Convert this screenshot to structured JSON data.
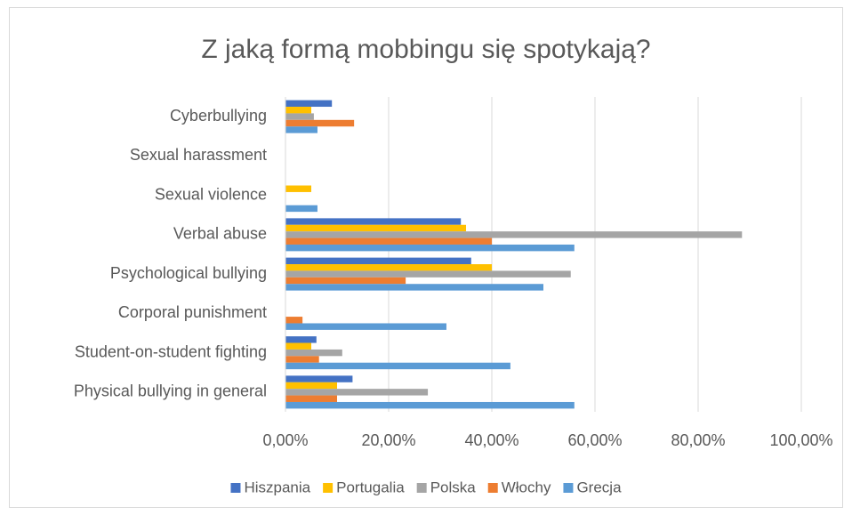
{
  "chart_data": {
    "type": "hbar",
    "title": "Z jaką formą mobbingu się spotykają?",
    "categories": [
      "Cyberbullying",
      "Sexual harassment",
      "Sexual violence",
      "Verbal abuse",
      "Psychological bullying",
      "Corporal punishment",
      "Student-on-student fighting",
      "Physical bullying in general"
    ],
    "series": [
      {
        "name": "Hiszpania",
        "color": "#4472c4",
        "values": [
          9,
          0,
          0,
          34,
          36,
          0,
          6,
          13
        ]
      },
      {
        "name": "Portugalia",
        "color": "#ffc000",
        "values": [
          5,
          0,
          5,
          35,
          40,
          0,
          5,
          10
        ]
      },
      {
        "name": "Polska",
        "color": "#a5a5a5",
        "values": [
          5.5,
          0,
          0,
          88.5,
          55.3,
          0,
          11,
          27.6
        ]
      },
      {
        "name": "Włochy",
        "color": "#ed7d31",
        "values": [
          13.3,
          0,
          0,
          40,
          23.3,
          3.3,
          6.5,
          10
        ]
      },
      {
        "name": "Grecja",
        "color": "#5b9bd5",
        "values": [
          6.2,
          0,
          6.2,
          56,
          50,
          31.2,
          43.6,
          56
        ]
      }
    ],
    "xlim": [
      0,
      100
    ],
    "xticks": [
      {
        "value": 0,
        "label": "0,00%"
      },
      {
        "value": 20,
        "label": "20,00%"
      },
      {
        "value": 40,
        "label": "40,00%"
      },
      {
        "value": 60,
        "label": "60,00%"
      },
      {
        "value": 80,
        "label": "80,00%"
      },
      {
        "value": 100,
        "label": "100,00%"
      }
    ],
    "grid": true,
    "legend": "bottom"
  }
}
